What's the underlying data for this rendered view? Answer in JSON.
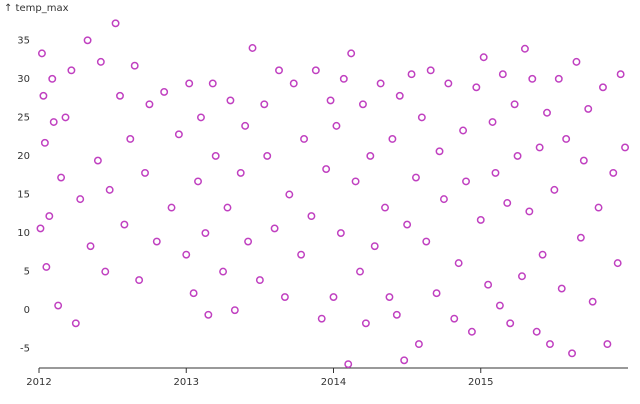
{
  "chart_data": {
    "type": "scatter",
    "y_label": "↑ temp_max",
    "color": "#c040c0",
    "x": [
      2012.01,
      2012.02,
      2012.03,
      2012.04,
      2012.05,
      2012.07,
      2012.09,
      2012.1,
      2012.13,
      2012.15,
      2012.18,
      2012.25,
      2012.22,
      2012.28,
      2012.33,
      2012.35,
      2012.4,
      2012.42,
      2012.45,
      2012.48,
      2012.52,
      2012.55,
      2012.58,
      2012.62,
      2012.65,
      2012.68,
      2012.72,
      2012.75,
      2012.8,
      2012.85,
      2012.9,
      2012.95,
      2013.0,
      2013.02,
      2013.05,
      2013.08,
      2013.1,
      2013.13,
      2013.15,
      2013.18,
      2013.2,
      2013.25,
      2013.28,
      2013.3,
      2013.33,
      2013.37,
      2013.4,
      2013.42,
      2013.45,
      2013.5,
      2013.53,
      2013.55,
      2013.6,
      2013.63,
      2013.67,
      2013.7,
      2013.73,
      2013.78,
      2013.8,
      2013.85,
      2013.88,
      2013.92,
      2013.95,
      2013.98,
      2014.0,
      2014.02,
      2014.05,
      2014.07,
      2014.1,
      2014.12,
      2014.15,
      2014.18,
      2014.2,
      2014.22,
      2014.25,
      2014.28,
      2014.32,
      2014.35,
      2014.38,
      2014.4,
      2014.43,
      2014.45,
      2014.48,
      2014.5,
      2014.53,
      2014.56,
      2014.58,
      2014.6,
      2014.63,
      2014.66,
      2014.7,
      2014.72,
      2014.75,
      2014.78,
      2014.82,
      2014.85,
      2014.88,
      2014.9,
      2014.94,
      2014.97,
      2015.0,
      2015.02,
      2015.05,
      2015.08,
      2015.1,
      2015.13,
      2015.15,
      2015.18,
      2015.2,
      2015.23,
      2015.25,
      2015.28,
      2015.3,
      2015.33,
      2015.35,
      2015.38,
      2015.4,
      2015.42,
      2015.45,
      2015.47,
      2015.5,
      2015.53,
      2015.55,
      2015.58,
      2015.62,
      2015.65,
      2015.68,
      2015.7,
      2015.73,
      2015.76,
      2015.8,
      2015.83,
      2015.86,
      2015.9,
      2015.93,
      2015.95,
      2015.98
    ],
    "values": [
      10.6,
      33.3,
      27.8,
      21.7,
      5.6,
      12.2,
      30,
      24.4,
      0.6,
      17.2,
      25,
      -1.7,
      31.1,
      14.4,
      35,
      8.3,
      19.4,
      32.2,
      5,
      15.6,
      37.2,
      27.8,
      11.1,
      22.2,
      31.7,
      3.9,
      17.8,
      26.7,
      8.9,
      28.3,
      13.3,
      22.8,
      7.2,
      29.4,
      2.2,
      16.7,
      25,
      10,
      -0.6,
      29.4,
      20,
      5,
      13.3,
      27.2,
      0,
      17.8,
      23.9,
      8.9,
      34,
      3.9,
      26.7,
      20,
      10.6,
      31.1,
      1.7,
      15,
      29.4,
      7.2,
      22.2,
      12.2,
      31.1,
      -1.1,
      18.3,
      27.2,
      1.7,
      23.9,
      10,
      30,
      -7,
      33.3,
      16.7,
      5,
      26.7,
      -1.7,
      20,
      8.3,
      29.4,
      13.3,
      1.7,
      22.2,
      -0.6,
      27.8,
      -6.5,
      11.1,
      30.6,
      17.2,
      -4.4,
      25,
      8.9,
      31.1,
      2.2,
      20.6,
      14.4,
      29.4,
      -1.1,
      6.1,
      23.3,
      16.7,
      -2.8,
      28.9,
      11.7,
      32.8,
      3.3,
      24.4,
      17.8,
      0.6,
      30.6,
      13.9,
      -1.7,
      26.7,
      20,
      4.4,
      33.9,
      12.8,
      30,
      -2.8,
      21.1,
      7.2,
      25.6,
      -4.4,
      15.6,
      30,
      2.8,
      22.2,
      -5.6,
      32.2,
      9.4,
      19.4,
      26.1,
      1.1,
      13.3,
      28.9,
      -4.4,
      17.8,
      6.1,
      30.6,
      21.1
    ],
    "xlim": [
      2012,
      2016
    ],
    "xticks": [
      2012,
      2013,
      2014,
      2015
    ],
    "ylim": [
      -7.5,
      37.5
    ],
    "yticks": [
      -5,
      0,
      5,
      10,
      15,
      20,
      25,
      30,
      35
    ]
  }
}
